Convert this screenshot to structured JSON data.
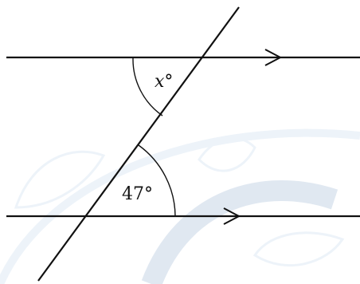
{
  "diagram": {
    "angles": {
      "top_label_var": "x",
      "top_label_unit": "°",
      "bottom_label": "47°"
    },
    "colors": {
      "line": "#111111",
      "watermark": "#cfe0f0"
    }
  }
}
